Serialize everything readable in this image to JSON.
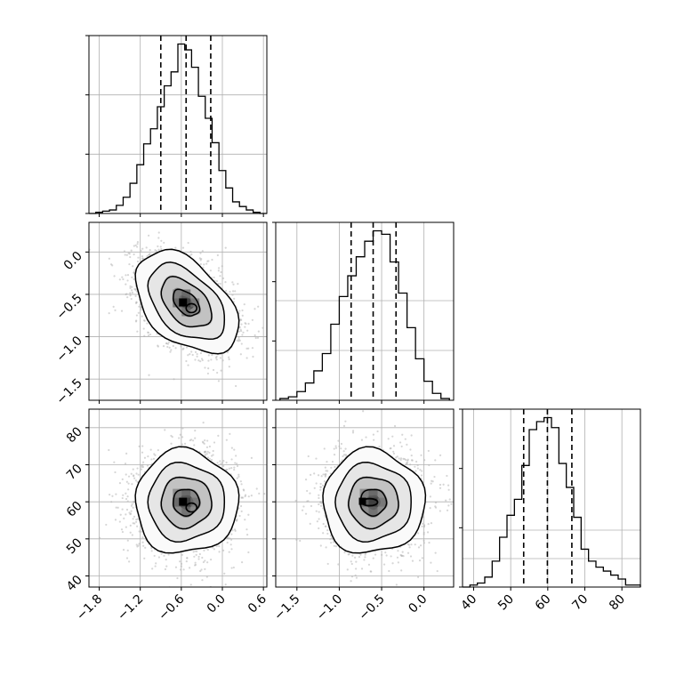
{
  "figure": {
    "background": "#ffffff",
    "line_color": "#000000",
    "grid_color": "#b0b0b0",
    "scatter_color": "#b4b4b4"
  },
  "chart_data": [
    {
      "id": "hist_p0",
      "type": "bar",
      "subtype": "step-histogram",
      "x_range": [
        -1.95,
        0.65
      ],
      "x": [
        -1.9,
        -1.8,
        -1.7,
        -1.6,
        -1.5,
        -1.4,
        -1.3,
        -1.2,
        -1.1,
        -1.0,
        -0.9,
        -0.8,
        -0.7,
        -0.6,
        -0.5,
        -0.4,
        -0.3,
        -0.2,
        -0.1,
        0.0,
        0.1,
        0.2,
        0.3,
        0.4,
        0.5,
        0.6
      ],
      "values": [
        0,
        1,
        2,
        3,
        7,
        14,
        26,
        42,
        60,
        73,
        92,
        110,
        122,
        146,
        141,
        126,
        101,
        82,
        61,
        37,
        22,
        10,
        6,
        3,
        1,
        0
      ],
      "quantiles": [
        -0.9,
        -0.53,
        -0.17
      ],
      "y_grid": [
        0.6667,
        1.3333
      ],
      "grid": true
    },
    {
      "id": "hist_p1",
      "type": "bar",
      "subtype": "step-histogram",
      "x_range": [
        -1.75,
        0.35
      ],
      "x": [
        -1.65,
        -1.55,
        -1.45,
        -1.35,
        -1.25,
        -1.15,
        -1.05,
        -0.95,
        -0.85,
        -0.75,
        -0.65,
        -0.55,
        -0.45,
        -0.35,
        -0.25,
        -0.15,
        -0.05,
        0.05,
        0.15,
        0.25
      ],
      "values": [
        1,
        2,
        5,
        10,
        17,
        27,
        44,
        60,
        72,
        83,
        92,
        98,
        96,
        80,
        62,
        42,
        24,
        11,
        4,
        1
      ],
      "quantiles": [
        -0.86,
        -0.6,
        -0.33
      ],
      "y_grid": [
        0.56,
        1.12
      ],
      "grid": true
    },
    {
      "id": "hist_p2",
      "type": "bar",
      "subtype": "step-histogram",
      "x_range": [
        37,
        85
      ],
      "x": [
        38,
        40,
        42,
        44,
        46,
        48,
        50,
        52,
        54,
        56,
        58,
        60,
        62,
        64,
        66,
        68,
        70,
        72,
        74,
        76,
        78,
        80,
        82,
        84
      ],
      "values": [
        0,
        1,
        2,
        5,
        13,
        25,
        36,
        44,
        61,
        79,
        83,
        85,
        80,
        62,
        50,
        35,
        19,
        13,
        10,
        8,
        6,
        4,
        1,
        1
      ],
      "quantiles": [
        53.5,
        59.9,
        66.5
      ],
      "y_grid": [
        0.32,
        0.64
      ],
      "grid": true
    },
    {
      "id": "scatter_p1_vs_p0",
      "type": "scatter",
      "subtype": "2d-density-contour",
      "x_range": [
        -1.95,
        0.65
      ],
      "y_range": [
        -1.75,
        0.35
      ],
      "mean": [
        -0.53,
        -0.6
      ],
      "sd": [
        0.35,
        0.28
      ],
      "correlation": -0.45,
      "levels_sigma": [
        0.5,
        1.0,
        1.5,
        2.0
      ]
    },
    {
      "id": "scatter_p2_vs_p0",
      "type": "scatter",
      "subtype": "2d-density-contour",
      "x_range": [
        -1.95,
        0.65
      ],
      "y_range": [
        37,
        85
      ],
      "mean": [
        -0.53,
        59.9
      ],
      "sd": [
        0.35,
        6.5
      ],
      "correlation": 0.0,
      "levels_sigma": [
        0.5,
        1.0,
        1.5,
        2.0
      ]
    },
    {
      "id": "scatter_p2_vs_p1",
      "type": "scatter",
      "subtype": "2d-density-contour",
      "x_range": [
        -1.75,
        0.35
      ],
      "y_range": [
        37,
        85
      ],
      "mean": [
        -0.6,
        59.9
      ],
      "sd": [
        0.28,
        6.5
      ],
      "correlation": 0.0,
      "levels_sigma": [
        0.5,
        1.0,
        1.5,
        2.0
      ]
    }
  ],
  "axes": {
    "p0_x_ticks": [
      {
        "v": -1.8,
        "label": "−1.8"
      },
      {
        "v": -1.2,
        "label": "−1.2"
      },
      {
        "v": -0.6,
        "label": "−0.6"
      },
      {
        "v": 0.0,
        "label": "0.0"
      },
      {
        "v": 0.6,
        "label": "0.6"
      }
    ],
    "p1_x_ticks": [
      {
        "v": -1.5,
        "label": "−1.5"
      },
      {
        "v": -1.0,
        "label": "−1.0"
      },
      {
        "v": -0.5,
        "label": "−0.5"
      },
      {
        "v": 0.0,
        "label": "0.0"
      }
    ],
    "p2_x_ticks": [
      {
        "v": 40,
        "label": "40"
      },
      {
        "v": 50,
        "label": "50"
      },
      {
        "v": 60,
        "label": "60"
      },
      {
        "v": 70,
        "label": "70"
      },
      {
        "v": 80,
        "label": "80"
      }
    ],
    "p1_y_ticks": [
      {
        "v": 0.0,
        "label": "0.0"
      },
      {
        "v": -0.5,
        "label": "−0.5"
      },
      {
        "v": -1.0,
        "label": "−1.0"
      },
      {
        "v": -1.5,
        "label": "−1.5"
      }
    ],
    "p2_y_ticks": [
      {
        "v": 80,
        "label": "80"
      },
      {
        "v": 70,
        "label": "70"
      },
      {
        "v": 60,
        "label": "60"
      },
      {
        "v": 50,
        "label": "50"
      },
      {
        "v": 40,
        "label": "40"
      }
    ]
  }
}
